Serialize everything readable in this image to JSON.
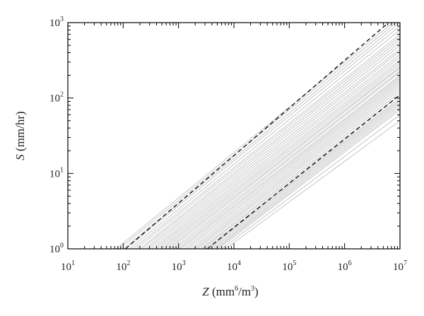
{
  "chart_data": {
    "type": "line",
    "xscale": "log",
    "yscale": "log",
    "xlim": [
      10,
      10000000
    ],
    "ylim": [
      1,
      1000
    ],
    "grid": false,
    "legend": "none",
    "xlabel": {
      "var": "Z",
      "text": " (mm",
      "sup1": "6",
      "mid": "/m",
      "sup2": "3",
      "end": ")"
    },
    "ylabel": {
      "var": "S",
      "text": " (mm/hr)"
    },
    "x_ticks": [
      {
        "base": "10",
        "exp": "1",
        "value": 10
      },
      {
        "base": "10",
        "exp": "2",
        "value": 100
      },
      {
        "base": "10",
        "exp": "3",
        "value": 1000
      },
      {
        "base": "10",
        "exp": "4",
        "value": 10000
      },
      {
        "base": "10",
        "exp": "5",
        "value": 100000
      },
      {
        "base": "10",
        "exp": "6",
        "value": 1000000
      },
      {
        "base": "10",
        "exp": "7",
        "value": 10000000
      }
    ],
    "y_ticks": [
      {
        "base": "10",
        "exp": "0",
        "value": 1
      },
      {
        "base": "10",
        "exp": "1",
        "value": 10
      },
      {
        "base": "10",
        "exp": "2",
        "value": 100
      },
      {
        "base": "10",
        "exp": "3",
        "value": 1000
      }
    ],
    "colors": {
      "gray_lines": "#c4c4c4",
      "dashed_lines": "#111111",
      "axes": "#000000"
    },
    "gray_series": [
      {
        "x": [
          75,
          10000000
        ],
        "y": [
          1,
          1200
        ]
      },
      {
        "x": [
          85,
          10000000
        ],
        "y": [
          1,
          1100
        ]
      },
      {
        "x": [
          100,
          10000000
        ],
        "y": [
          1,
          1000
        ]
      },
      {
        "x": [
          110,
          10000000
        ],
        "y": [
          1,
          900
        ]
      },
      {
        "x": [
          130,
          10000000
        ],
        "y": [
          1,
          800
        ]
      },
      {
        "x": [
          150,
          10000000
        ],
        "y": [
          1,
          700
        ]
      },
      {
        "x": [
          170,
          10000000
        ],
        "y": [
          1,
          650
        ]
      },
      {
        "x": [
          200,
          10000000
        ],
        "y": [
          1,
          600
        ]
      },
      {
        "x": [
          220,
          10000000
        ],
        "y": [
          1,
          550
        ]
      },
      {
        "x": [
          250,
          10000000
        ],
        "y": [
          1,
          500
        ]
      },
      {
        "x": [
          280,
          10000000
        ],
        "y": [
          1,
          450
        ]
      },
      {
        "x": [
          320,
          10000000
        ],
        "y": [
          1,
          420
        ]
      },
      {
        "x": [
          360,
          10000000
        ],
        "y": [
          1,
          380
        ]
      },
      {
        "x": [
          400,
          10000000
        ],
        "y": [
          1,
          350
        ]
      },
      {
        "x": [
          450,
          10000000
        ],
        "y": [
          1,
          320
        ]
      },
      {
        "x": [
          500,
          10000000
        ],
        "y": [
          1,
          300
        ]
      },
      {
        "x": [
          560,
          10000000
        ],
        "y": [
          1,
          280
        ]
      },
      {
        "x": [
          630,
          10000000
        ],
        "y": [
          1,
          260
        ]
      },
      {
        "x": [
          700,
          10000000
        ],
        "y": [
          1,
          250
        ]
      },
      {
        "x": [
          800,
          10000000
        ],
        "y": [
          1,
          230
        ]
      },
      {
        "x": [
          900,
          10000000
        ],
        "y": [
          1,
          220
        ]
      },
      {
        "x": [
          1000,
          10000000
        ],
        "y": [
          1,
          200
        ]
      },
      {
        "x": [
          1100,
          10000000
        ],
        "y": [
          1,
          190
        ]
      },
      {
        "x": [
          1250,
          10000000
        ],
        "y": [
          1,
          180
        ]
      },
      {
        "x": [
          1400,
          10000000
        ],
        "y": [
          1,
          170
        ]
      },
      {
        "x": [
          1600,
          10000000
        ],
        "y": [
          1,
          160
        ]
      },
      {
        "x": [
          1800,
          10000000
        ],
        "y": [
          1,
          150
        ]
      },
      {
        "x": [
          2000,
          10000000
        ],
        "y": [
          1,
          140
        ]
      },
      {
        "x": [
          2200,
          10000000
        ],
        "y": [
          1,
          130
        ]
      },
      {
        "x": [
          2500,
          10000000
        ],
        "y": [
          1,
          120
        ]
      },
      {
        "x": [
          2700,
          10000000
        ],
        "y": [
          1,
          110
        ]
      },
      {
        "x": [
          3000,
          10000000
        ],
        "y": [
          1,
          100
        ]
      },
      {
        "x": [
          3300,
          10000000
        ],
        "y": [
          1,
          95
        ]
      },
      {
        "x": [
          3600,
          10000000
        ],
        "y": [
          1,
          90
        ]
      },
      {
        "x": [
          4000,
          10000000
        ],
        "y": [
          1,
          85
        ]
      },
      {
        "x": [
          4400,
          10000000
        ],
        "y": [
          1,
          80
        ]
      },
      {
        "x": [
          4800,
          10000000
        ],
        "y": [
          1,
          75
        ]
      },
      {
        "x": [
          5200,
          10000000
        ],
        "y": [
          1,
          70
        ]
      },
      {
        "x": [
          6000,
          10000000
        ],
        "y": [
          1,
          60
        ]
      },
      {
        "x": [
          7000,
          10000000
        ],
        "y": [
          1,
          50
        ]
      }
    ],
    "dashed_series": [
      {
        "x": [
          110,
          6200000
        ],
        "y": [
          1,
          1000
        ]
      },
      {
        "x": [
          3300,
          10000000
        ],
        "y": [
          1,
          110
        ]
      }
    ]
  }
}
